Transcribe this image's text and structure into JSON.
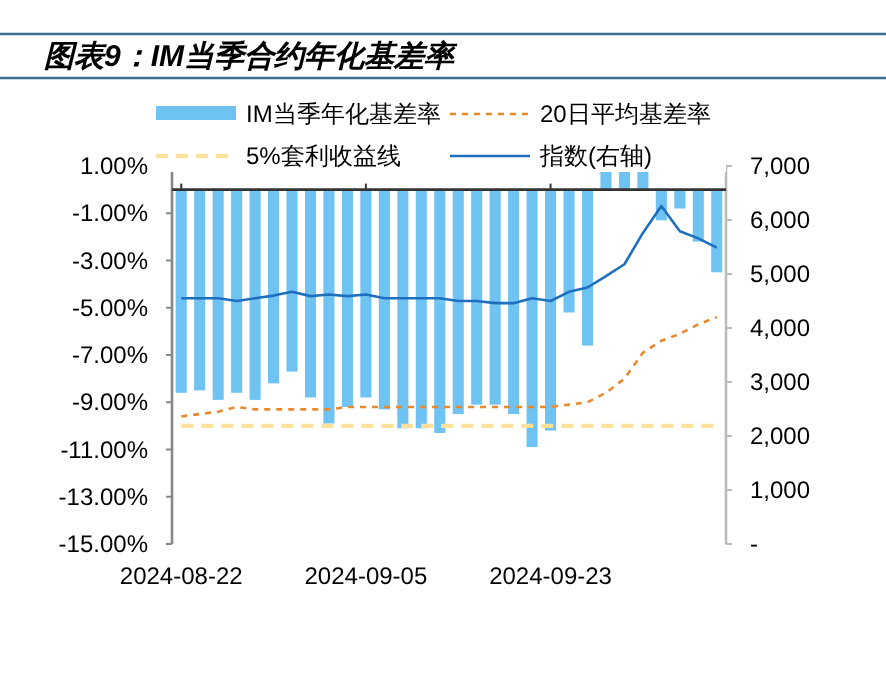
{
  "chart_data": {
    "type": "bar",
    "title": "图表9：IM当季合约年化基差率",
    "categories": [
      "2024-08-22",
      null,
      null,
      null,
      null,
      null,
      null,
      null,
      null,
      null,
      "2024-09-05",
      null,
      null,
      null,
      null,
      null,
      null,
      null,
      null,
      null,
      "2024-09-23",
      null,
      null,
      null,
      null,
      null,
      null,
      null,
      null,
      null
    ],
    "series": [
      {
        "name": "IM当季年化基差率",
        "color": "#6ec3f2",
        "values": [
          -8.6,
          -8.5,
          -8.9,
          -8.6,
          -8.9,
          -8.2,
          -7.7,
          -8.8,
          -9.9,
          -9.2,
          -8.8,
          -9.3,
          -10.1,
          -10.1,
          -10.3,
          -9.5,
          -9.1,
          -9.1,
          -9.5,
          -10.9,
          -10.2,
          -5.2,
          -6.6,
          0.8,
          0.8,
          0.8,
          -1.3,
          -0.8,
          -2.2,
          -3.5
        ]
      },
      {
        "name": "20日平均基差率",
        "type": "line",
        "line_style": "dashed",
        "color": "#e8892b",
        "values": [
          -9.6,
          -9.5,
          -9.4,
          -9.2,
          -9.3,
          -9.3,
          -9.3,
          -9.3,
          -9.3,
          -9.2,
          -9.2,
          -9.2,
          -9.2,
          -9.2,
          -9.2,
          -9.2,
          -9.2,
          -9.2,
          -9.2,
          -9.2,
          -9.2,
          -9.1,
          -9.0,
          -8.6,
          -8.0,
          -6.9,
          -6.4,
          -6.1,
          -5.7,
          -5.4
        ]
      },
      {
        "name": "5%套利收益线",
        "type": "line",
        "line_style": "dashed",
        "color": "#fde19a",
        "values": [
          -10,
          -10,
          -10,
          -10,
          -10,
          -10,
          -10,
          -10,
          -10,
          -10,
          -10,
          -10,
          -10,
          -10,
          -10,
          -10,
          -10,
          -10,
          -10,
          -10,
          -10,
          -10,
          -10,
          -10,
          -10,
          -10,
          -10,
          -10,
          -10,
          -10
        ]
      },
      {
        "name": "指数(右轴)",
        "type": "line",
        "axis": "y2",
        "color": "#1f6fbf",
        "values": [
          4550,
          4550,
          4550,
          4500,
          4550,
          4600,
          4670,
          4590,
          4620,
          4590,
          4620,
          4550,
          4550,
          4550,
          4550,
          4500,
          4500,
          4460,
          4460,
          4550,
          4500,
          4670,
          4750,
          4960,
          5180,
          5760,
          6260,
          5790,
          5660,
          5490
        ]
      }
    ],
    "ylim": [
      -15,
      1
    ],
    "yticks": [
      {
        "value": 1,
        "label": "1.00%"
      },
      {
        "value": -1,
        "label": "-1.00%"
      },
      {
        "value": -3,
        "label": "-3.00%"
      },
      {
        "value": -5,
        "label": "-5.00%"
      },
      {
        "value": -7,
        "label": "-7.00%"
      },
      {
        "value": -9,
        "label": "-9.00%"
      },
      {
        "value": -11,
        "label": "-11.00%"
      },
      {
        "value": -13,
        "label": "-13.00%"
      },
      {
        "value": -15,
        "label": "-15.00%"
      }
    ],
    "y2lim": [
      0,
      7000
    ],
    "y2ticks": [
      {
        "value": 0,
        "label": "-"
      },
      {
        "value": 1000,
        "label": "1,000"
      },
      {
        "value": 2000,
        "label": "2,000"
      },
      {
        "value": 3000,
        "label": "3,000"
      },
      {
        "value": 4000,
        "label": "4,000"
      },
      {
        "value": 5000,
        "label": "5,000"
      },
      {
        "value": 6000,
        "label": "6,000"
      },
      {
        "value": 7000,
        "label": "7,000"
      }
    ],
    "legend": "top",
    "grid": false
  }
}
